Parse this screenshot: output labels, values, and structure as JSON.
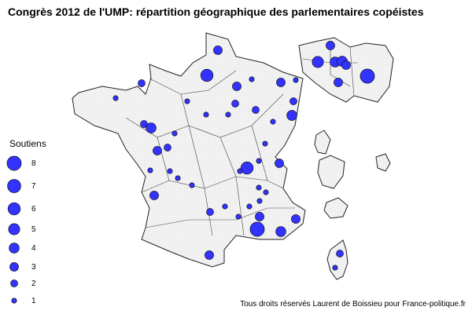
{
  "title": "Congrès 2012 de l'UMP: répartition géographique des parlementaires copéistes",
  "legend": {
    "title": "Soutiens",
    "values": [
      8,
      7,
      6,
      5,
      4,
      3,
      2,
      1
    ]
  },
  "bubbles": {
    "color": "#3333ff",
    "values": [
      3,
      6,
      2,
      1,
      1,
      3,
      1,
      3,
      1,
      2,
      2,
      1,
      1,
      2,
      4,
      2,
      1,
      4,
      1,
      2,
      3,
      1,
      1,
      1,
      6,
      3,
      1,
      1,
      1,
      3,
      1,
      1,
      1,
      2,
      1,
      1,
      1,
      1,
      3,
      8,
      4,
      3,
      3,
      3,
      5,
      4,
      4,
      3,
      3,
      8,
      2,
      1
    ]
  },
  "credit": "Tous droits réservés Laurent de Boissieu pour France-politique.fr"
}
